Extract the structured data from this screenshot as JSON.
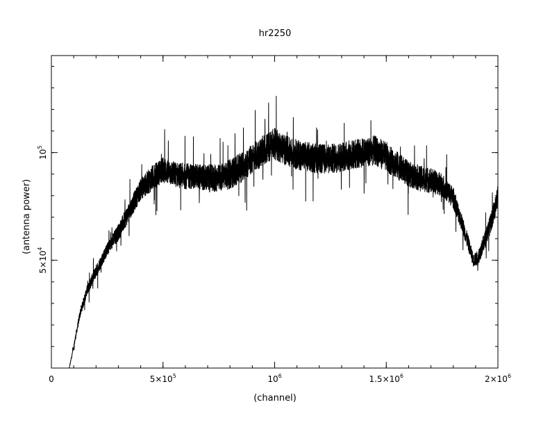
{
  "chart_data": {
    "type": "line",
    "title": "hr2250",
    "xlabel": "(channel)",
    "ylabel": "(antenna power)",
    "xlim": [
      0,
      2000000
    ],
    "ylim": [
      0,
      145000
    ],
    "x_ticks": [
      {
        "value": 0,
        "base": "0",
        "exp": ""
      },
      {
        "value": 500000,
        "base": "5×10",
        "exp": "5"
      },
      {
        "value": 1000000,
        "base": "10",
        "exp": "6"
      },
      {
        "value": 1500000,
        "base": "1.5×10",
        "exp": "6"
      },
      {
        "value": 2000000,
        "base": "2×10",
        "exp": "6"
      }
    ],
    "y_ticks": [
      {
        "value": 50000,
        "base": "5×10",
        "exp": "4"
      },
      {
        "value": 100000,
        "base": "10",
        "exp": "5"
      }
    ],
    "x_minor_step": 100000,
    "y_minor_step": 10000,
    "series": [
      {
        "x": [
          80000,
          100000,
          130000,
          160000,
          200000,
          250000,
          300000,
          350000,
          400000,
          450000,
          500000,
          550000,
          600000,
          650000,
          700000,
          750000,
          800000,
          850000,
          900000,
          950000,
          1000000,
          1050000,
          1100000,
          1150000,
          1200000,
          1250000,
          1300000,
          1350000,
          1400000,
          1450000,
          1500000,
          1550000,
          1600000,
          1650000,
          1700000,
          1750000,
          1800000,
          1840000,
          1870000,
          1890000,
          1910000,
          1940000,
          1970000,
          2000000
        ],
        "y": [
          0,
          10000,
          26000,
          36000,
          45000,
          55000,
          63000,
          73000,
          83000,
          88000,
          92000,
          90000,
          89000,
          89000,
          88000,
          88000,
          90000,
          93000,
          97000,
          101000,
          104000,
          101000,
          99000,
          98000,
          97000,
          97000,
          98000,
          99000,
          100000,
          101000,
          98000,
          94000,
          90000,
          88000,
          87000,
          85000,
          79000,
          67000,
          57000,
          50000,
          51000,
          59000,
          68000,
          80000
        ],
        "noise": [
          0,
          1000,
          2000,
          2500,
          3000,
          3000,
          4000,
          4500,
          5000,
          6000,
          6000,
          6000,
          6000,
          6000,
          6500,
          6500,
          7000,
          7000,
          7000,
          7000,
          7500,
          7000,
          7000,
          7000,
          7000,
          7000,
          7000,
          7000,
          7000,
          7000,
          7000,
          6500,
          6000,
          6000,
          6000,
          5500,
          5000,
          4000,
          3500,
          3000,
          3500,
          4000,
          4500,
          5000
        ]
      }
    ]
  }
}
